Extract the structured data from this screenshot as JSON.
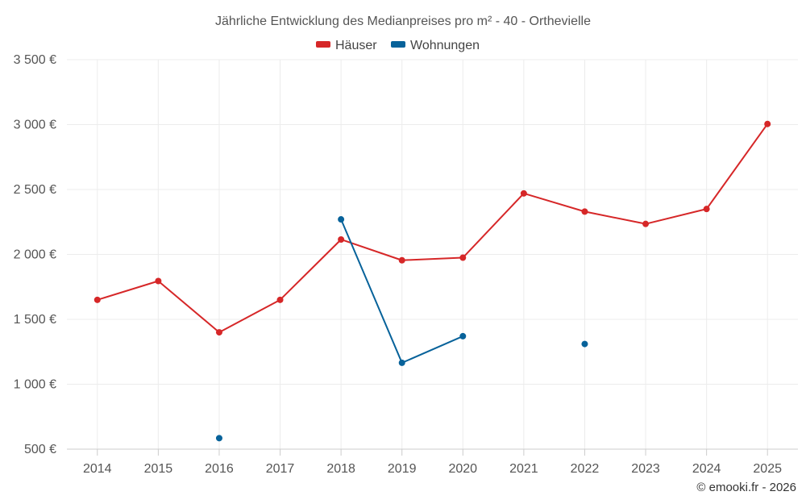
{
  "chart_data": {
    "type": "line",
    "title": "Jährliche Entwicklung des Medianpreises pro m² - 40 - Orthevielle",
    "xlabel": "",
    "ylabel": "",
    "categories": [
      "2014",
      "2015",
      "2016",
      "2017",
      "2018",
      "2019",
      "2020",
      "2021",
      "2022",
      "2023",
      "2024",
      "2025"
    ],
    "ylim": [
      500,
      3500
    ],
    "yticks": [
      500,
      1000,
      1500,
      2000,
      2500,
      3000,
      3500
    ],
    "ytick_labels": [
      "500 €",
      "1 000 €",
      "1 500 €",
      "2 000 €",
      "2 500 €",
      "3 000 €",
      "3 500 €"
    ],
    "grid": true,
    "legend_position": "top-center",
    "series": [
      {
        "name": "Häuser",
        "color": "#d62728",
        "values": [
          1650,
          1795,
          1400,
          1650,
          2115,
          1955,
          1975,
          2470,
          2330,
          2235,
          2350,
          3005
        ]
      },
      {
        "name": "Wohnungen",
        "color": "#07629a",
        "values": [
          null,
          null,
          585,
          null,
          2270,
          1165,
          1370,
          null,
          1310,
          null,
          null,
          null
        ]
      }
    ],
    "credit": "© emooki.fr - 2026"
  }
}
